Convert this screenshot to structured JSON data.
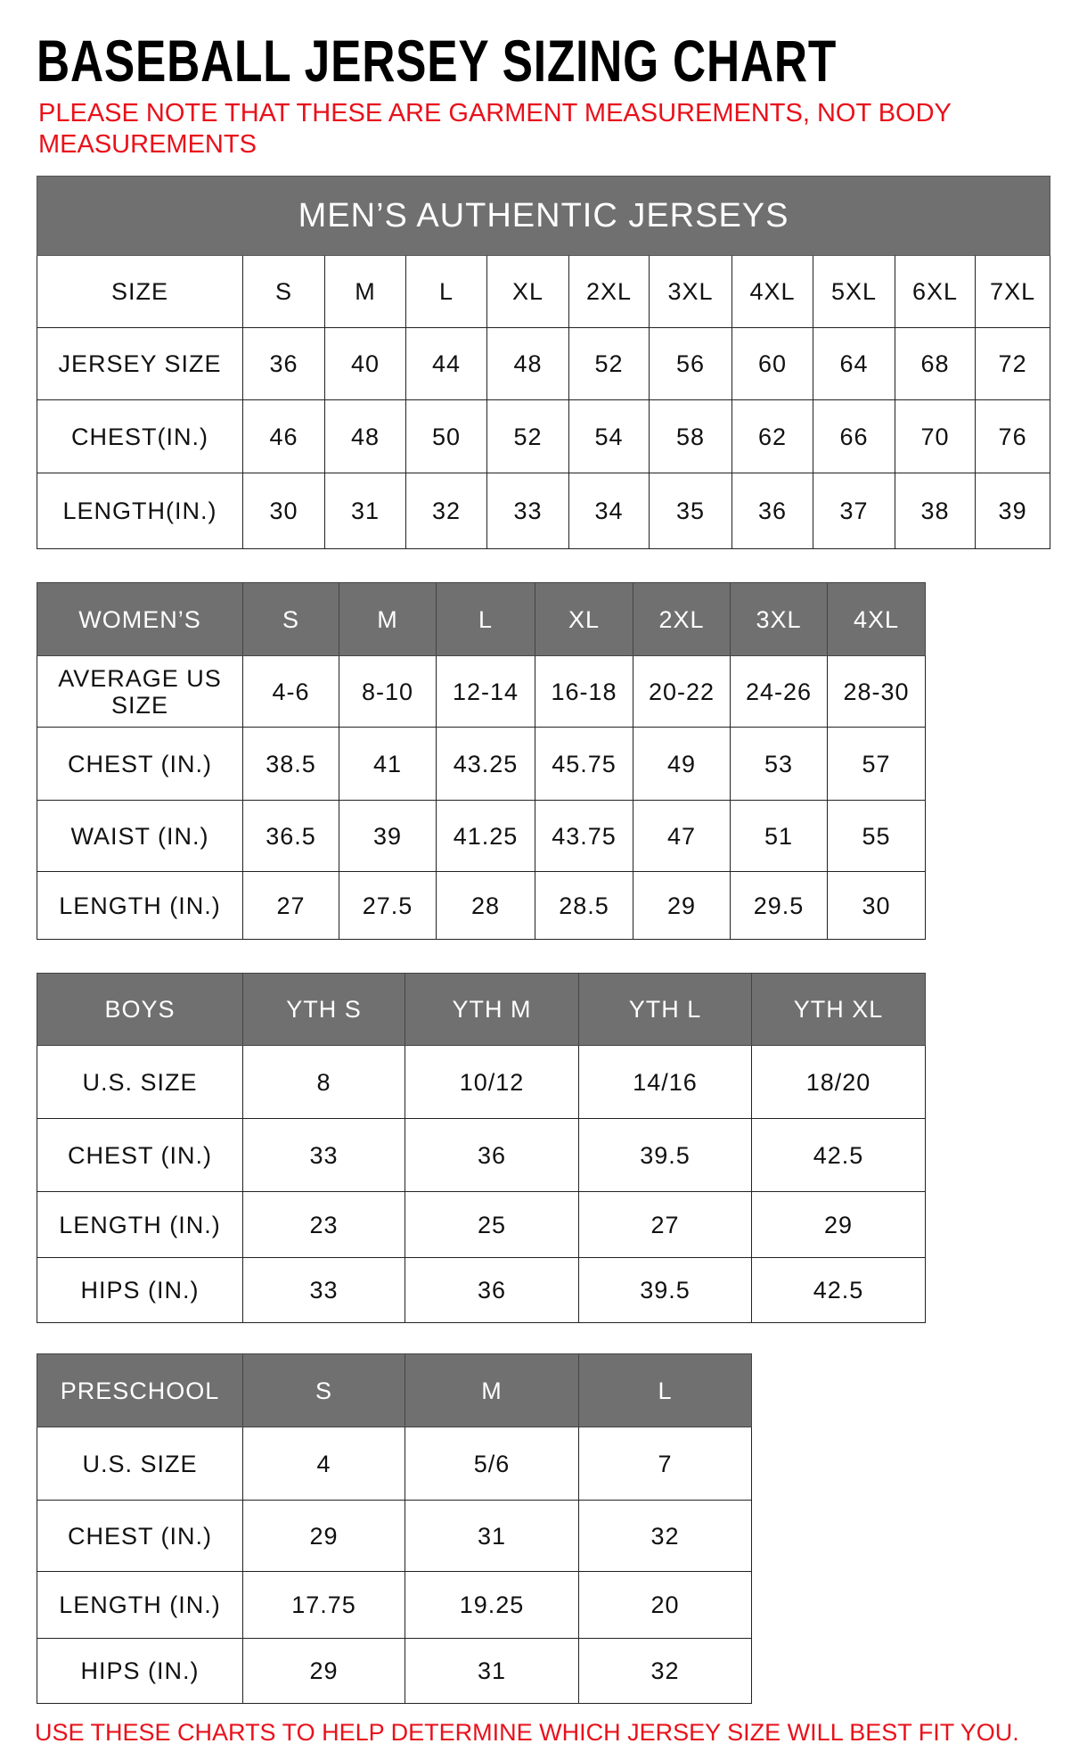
{
  "title": "BASEBALL JERSEY SIZING CHART",
  "note": "PLEASE NOTE THAT THESE ARE GARMENT MEASUREMENTS, NOT BODY MEASUREMENTS",
  "footer": "USE THESE CHARTS TO HELP DETERMINE WHICH JERSEY SIZE WILL BEST FIT YOU.",
  "colors": {
    "header_bg": "#707070",
    "note_red": "#e8111b"
  },
  "tables": [
    {
      "caption": "MEN’S AUTHENTIC JERSEYS",
      "header": [
        "SIZE",
        "S",
        "M",
        "L",
        "XL",
        "2XL",
        "3XL",
        "4XL",
        "5XL",
        "6XL",
        "7XL"
      ],
      "header_shaded": false,
      "rows": [
        [
          "JERSEY SIZE",
          "36",
          "40",
          "44",
          "48",
          "52",
          "56",
          "60",
          "64",
          "68",
          "72"
        ],
        [
          "CHEST(IN.)",
          "46",
          "48",
          "50",
          "52",
          "54",
          "58",
          "62",
          "66",
          "70",
          "76"
        ],
        [
          "LENGTH(IN.)",
          "30",
          "31",
          "32",
          "33",
          "34",
          "35",
          "36",
          "37",
          "38",
          "39"
        ]
      ]
    },
    {
      "header": [
        "WOMEN’S",
        "S",
        "M",
        "L",
        "XL",
        "2XL",
        "3XL",
        "4XL"
      ],
      "header_shaded": true,
      "rows": [
        [
          "AVERAGE US SIZE",
          "4-6",
          "8-10",
          "12-14",
          "16-18",
          "20-22",
          "24-26",
          "28-30"
        ],
        [
          "CHEST (IN.)",
          "38.5",
          "41",
          "43.25",
          "45.75",
          "49",
          "53",
          "57"
        ],
        [
          "WAIST (IN.)",
          "36.5",
          "39",
          "41.25",
          "43.75",
          "47",
          "51",
          "55"
        ],
        [
          "LENGTH (IN.)",
          "27",
          "27.5",
          "28",
          "28.5",
          "29",
          "29.5",
          "30"
        ]
      ]
    },
    {
      "header": [
        "BOYS",
        "YTH S",
        "YTH M",
        "YTH L",
        "YTH XL"
      ],
      "header_shaded": true,
      "rows": [
        [
          "U.S. SIZE",
          "8",
          "10/12",
          "14/16",
          "18/20"
        ],
        [
          "CHEST (IN.)",
          "33",
          "36",
          "39.5",
          "42.5"
        ],
        [
          "LENGTH (IN.)",
          "23",
          "25",
          "27",
          "29"
        ],
        [
          "HIPS (IN.)",
          "33",
          "36",
          "39.5",
          "42.5"
        ]
      ]
    },
    {
      "header": [
        "PRESCHOOL",
        "S",
        "M",
        "L"
      ],
      "header_shaded": true,
      "rows": [
        [
          "U.S. SIZE",
          "4",
          "5/6",
          "7"
        ],
        [
          "CHEST (IN.)",
          "29",
          "31",
          "32"
        ],
        [
          "LENGTH (IN.)",
          "17.75",
          "19.25",
          "20"
        ],
        [
          "HIPS (IN.)",
          "29",
          "31",
          "32"
        ]
      ]
    }
  ]
}
